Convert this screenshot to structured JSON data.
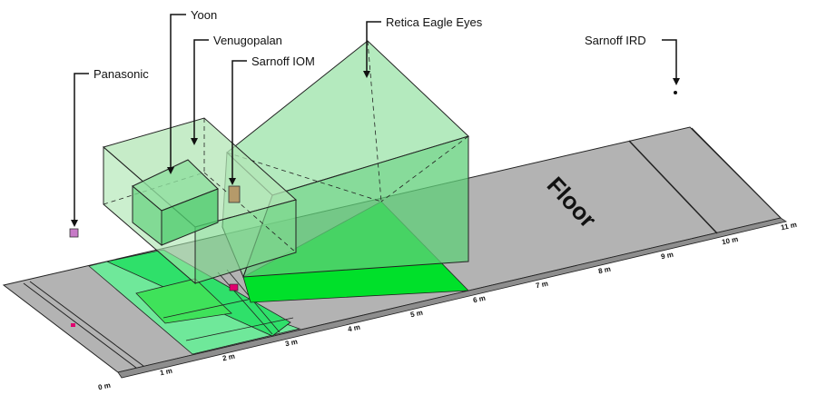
{
  "labels": {
    "yoon": "Yoon",
    "venugopalan": "Venugopalan",
    "sarnoff_iom": "Sarnoff IOM",
    "retica": "Retica Eagle Eyes",
    "sarnoff_ird": "Sarnoff IRD",
    "panasonic": "Panasonic",
    "floor": "Floor"
  },
  "ticks": [
    "0 m",
    "1 m",
    "2 m",
    "3 m",
    "4 m",
    "5 m",
    "6 m",
    "7 m",
    "8 m",
    "9 m",
    "10 m",
    "11 m"
  ],
  "colors": {
    "floor": "#b3b3b3",
    "capture_bright": "#00e02a",
    "capture_light": "#33e36a",
    "capture_pale": "#7be8a0",
    "volume_fill": "#7ed98e",
    "edge": "#222222",
    "marker_pink": "#e0006e",
    "camera_box": "#b59a6a"
  }
}
